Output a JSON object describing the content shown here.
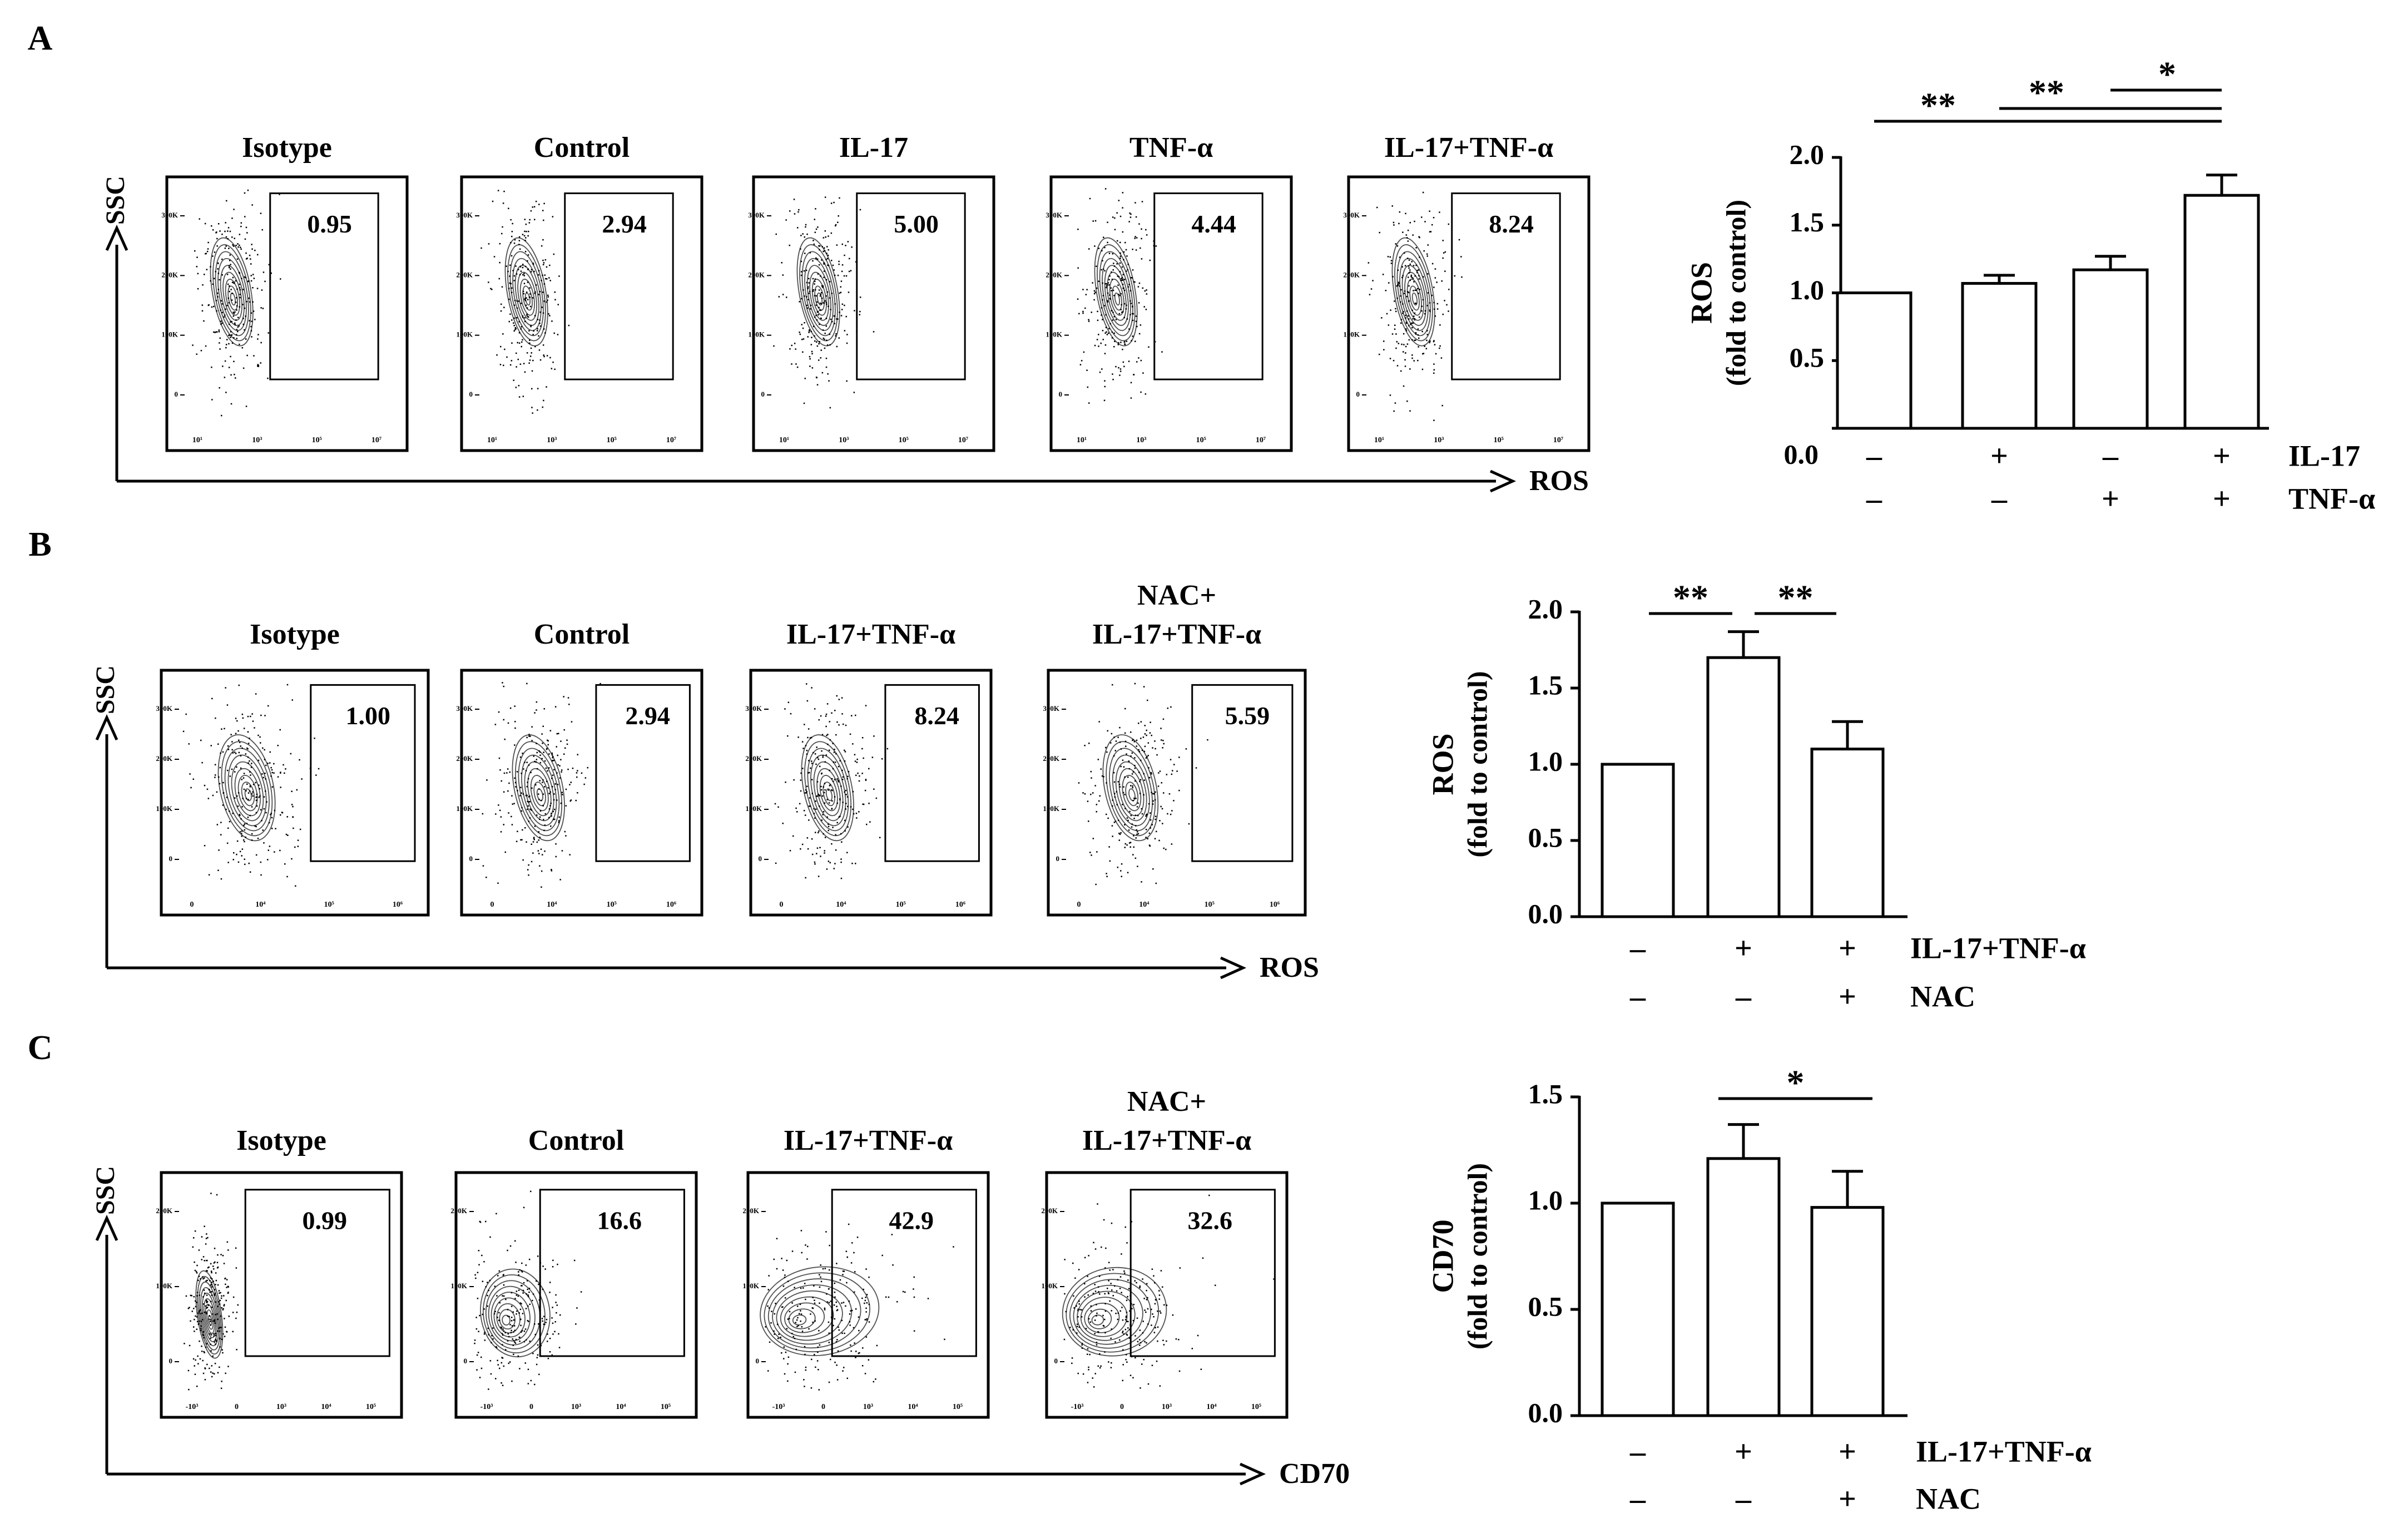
{
  "panels": {
    "A": {
      "label": "A",
      "facs": {
        "y_axis": "SSC",
        "x_axis": "ROS",
        "plots": [
          {
            "title": "Isotype",
            "value": "0.95"
          },
          {
            "title": "Control",
            "value": "2.94"
          },
          {
            "title": "IL-17",
            "value": "5.00"
          },
          {
            "title": "TNF-α",
            "value": "4.44"
          },
          {
            "title": "IL-17+TNF-α",
            "value": "8.24"
          }
        ],
        "y_ticks": [
          "300K",
          "200K",
          "100K",
          "0"
        ],
        "x_ticks": [
          "10¹",
          "10³",
          "10⁵",
          "10⁷"
        ]
      }
    },
    "B": {
      "label": "B",
      "facs": {
        "y_axis": "SSC",
        "x_axis": "ROS",
        "plots": [
          {
            "title": "Isotype",
            "value": "1.00"
          },
          {
            "title": "Control",
            "value": "2.94"
          },
          {
            "title": "IL-17+TNF-α",
            "value": "8.24"
          },
          {
            "title": "NAC+",
            "title2": "IL-17+TNF-α",
            "value": "5.59"
          }
        ],
        "y_ticks": [
          "300K",
          "200K",
          "100K",
          "0"
        ],
        "x_ticks": [
          "0",
          "10⁴",
          "10⁵",
          "10⁶"
        ]
      }
    },
    "C": {
      "label": "C",
      "facs": {
        "y_axis": "SSC",
        "x_axis": "CD70",
        "plots": [
          {
            "title": "Isotype",
            "value": "0.99"
          },
          {
            "title": "Control",
            "value": "16.6"
          },
          {
            "title": "IL-17+TNF-α",
            "value": "42.9"
          },
          {
            "title": "NAC+",
            "title2": "IL-17+TNF-α",
            "value": "32.6"
          }
        ],
        "y_ticks": [
          "200K",
          "100K",
          "0"
        ],
        "x_ticks": [
          "-10³",
          "0",
          "10³",
          "10⁴",
          "10⁵"
        ]
      }
    }
  },
  "chart_data": [
    {
      "type": "bar",
      "panel": "A",
      "title": "",
      "ylabel": "ROS",
      "ylabel2": "(fold to control)",
      "ylim": [
        0,
        2.0
      ],
      "y_ticks": [
        "0.0",
        "0.5",
        "1.0",
        "1.5",
        "2.0"
      ],
      "categories": [
        "Control",
        "IL-17",
        "TNF-α",
        "IL-17+TNF-α"
      ],
      "values": [
        1.0,
        1.07,
        1.17,
        1.72
      ],
      "errors": [
        0,
        0.06,
        0.1,
        0.15
      ],
      "conditions": [
        {
          "name": "IL-17",
          "signs": [
            "–",
            "+",
            "–",
            "+"
          ]
        },
        {
          "name": "TNF-α",
          "signs": [
            "–",
            "–",
            "+",
            "+"
          ]
        }
      ],
      "significance": [
        {
          "from": 0,
          "to": 3,
          "label": "**"
        },
        {
          "from": 1,
          "to": 3,
          "label": "**"
        },
        {
          "from": 2,
          "to": 3,
          "label": "*"
        }
      ]
    },
    {
      "type": "bar",
      "panel": "B",
      "title": "",
      "ylabel": "ROS",
      "ylabel2": "(fold to control)",
      "ylim": [
        0,
        2.0
      ],
      "y_ticks": [
        "0.0",
        "0.5",
        "1.0",
        "1.5",
        "2.0"
      ],
      "categories": [
        "Control",
        "IL-17+TNF-α",
        "NAC+IL-17+TNF-α"
      ],
      "values": [
        1.0,
        1.7,
        1.1
      ],
      "errors": [
        0,
        0.17,
        0.18
      ],
      "conditions": [
        {
          "name": "IL-17+TNF-α",
          "signs": [
            "–",
            "+",
            "+"
          ]
        },
        {
          "name": "NAC",
          "signs": [
            "–",
            "–",
            "+"
          ]
        }
      ],
      "significance": [
        {
          "from": 0,
          "to": 1,
          "label": "**"
        },
        {
          "from": 1,
          "to": 2,
          "label": "**"
        }
      ]
    },
    {
      "type": "bar",
      "panel": "C",
      "title": "",
      "ylabel": "CD70",
      "ylabel2": "(fold to control)",
      "ylim": [
        0,
        1.5
      ],
      "y_ticks": [
        "0.0",
        "0.5",
        "1.0",
        "1.5"
      ],
      "categories": [
        "Control",
        "IL-17+TNF-α",
        "NAC+IL-17+TNF-α"
      ],
      "values": [
        1.0,
        1.21,
        0.98
      ],
      "errors": [
        0,
        0.16,
        0.17
      ],
      "conditions": [
        {
          "name": "IL-17+TNF-α",
          "signs": [
            "–",
            "+",
            "+"
          ]
        },
        {
          "name": "NAC",
          "signs": [
            "–",
            "–",
            "+"
          ]
        }
      ],
      "significance": [
        {
          "from": 1,
          "to": 2,
          "label": "*"
        }
      ]
    }
  ]
}
